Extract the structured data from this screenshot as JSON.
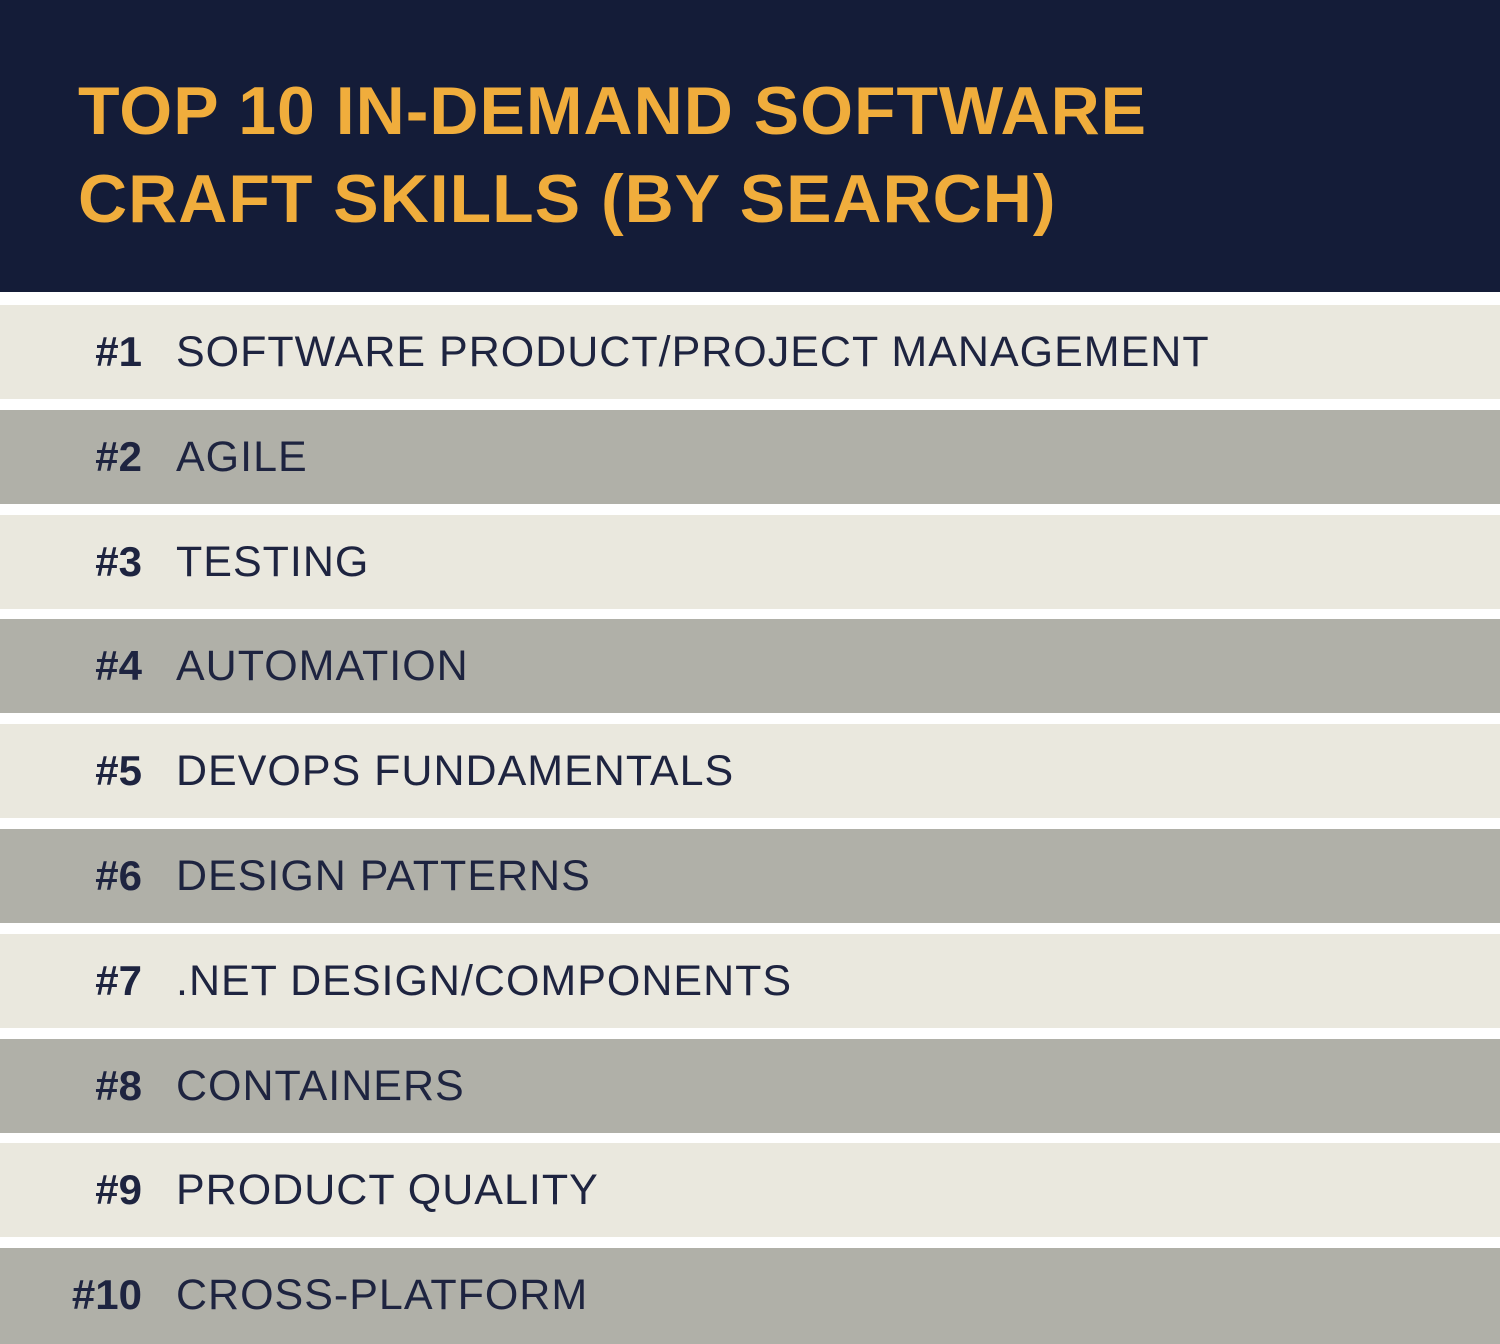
{
  "header": {
    "title_lines": [
      "TOP 10 IN-DEMAND SOFTWARE",
      "CRAFT SKILLS (BY SEARCH)"
    ]
  },
  "list": [
    {
      "rank": "#1",
      "skill": "SOFTWARE PRODUCT/PROJECT MANAGEMENT"
    },
    {
      "rank": "#2",
      "skill": "AGILE"
    },
    {
      "rank": "#3",
      "skill": "TESTING"
    },
    {
      "rank": "#4",
      "skill": "AUTOMATION"
    },
    {
      "rank": "#5",
      "skill": "DEVOPS FUNDAMENTALS"
    },
    {
      "rank": "#6",
      "skill": "DESIGN PATTERNS"
    },
    {
      "rank": "#7",
      "skill": ".NET DESIGN/COMPONENTS"
    },
    {
      "rank": "#8",
      "skill": "CONTAINERS"
    },
    {
      "rank": "#9",
      "skill": "PRODUCT QUALITY"
    },
    {
      "rank": "#10",
      "skill": "CROSS-PLATFORM"
    }
  ]
}
